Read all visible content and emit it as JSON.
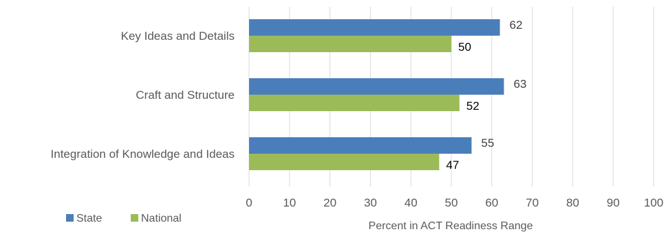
{
  "chart_data": {
    "type": "bar",
    "orientation": "horizontal",
    "categories": [
      "Key Ideas and Details",
      "Craft and Structure",
      "Integration of Knowledge and Ideas"
    ],
    "series": [
      {
        "name": "State",
        "values": [
          62,
          63,
          55
        ],
        "color": "#4a7ebb"
      },
      {
        "name": "National",
        "values": [
          50,
          52,
          47
        ],
        "color": "#9bbb59"
      }
    ],
    "xlabel": "Percent in ACT Readiness Range",
    "xlim": [
      0,
      100
    ],
    "xticks": [
      "0",
      "10",
      "20",
      "30",
      "40",
      "50",
      "60",
      "70",
      "80",
      "90",
      "100"
    ],
    "grid": true,
    "legend_position": "bottom-left",
    "data_labels": true
  }
}
